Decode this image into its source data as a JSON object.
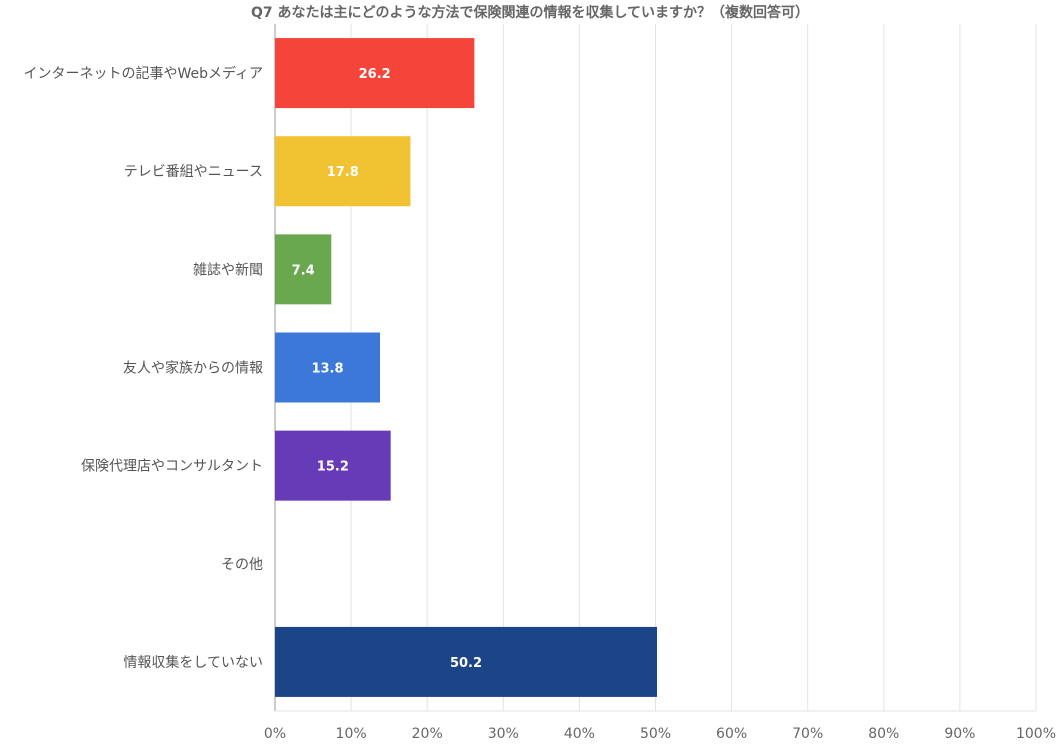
{
  "chart_data": {
    "type": "bar",
    "orientation": "horizontal",
    "title": "Q7 あなたは主にどのような方法で保険関連の情報を収集していますか？（複数回答可）",
    "categories": [
      "インターネットの記事やWebメディア",
      "テレビ番組やニュース",
      "雑誌や新聞",
      "友人や家族からの情報",
      "保険代理店やコンサルタント",
      "その他",
      "情報収集をしていない"
    ],
    "values": [
      26.2,
      17.8,
      7.4,
      13.8,
      15.2,
      0,
      50.2
    ],
    "data_labels": [
      "26.2",
      "17.8",
      "7.4",
      "13.8",
      "15.2",
      "",
      "50.2"
    ],
    "colors": [
      "#f5443a",
      "#f1c232",
      "#6aa84f",
      "#3c78d8",
      "#673ab7",
      "#999999",
      "#1c4587"
    ],
    "xlim": [
      0,
      100
    ],
    "x_ticks": [
      "0%",
      "10%",
      "20%",
      "30%",
      "40%",
      "50%",
      "60%",
      "70%",
      "80%",
      "90%",
      "100%"
    ],
    "xlabel": "",
    "ylabel": "",
    "grid": true
  }
}
